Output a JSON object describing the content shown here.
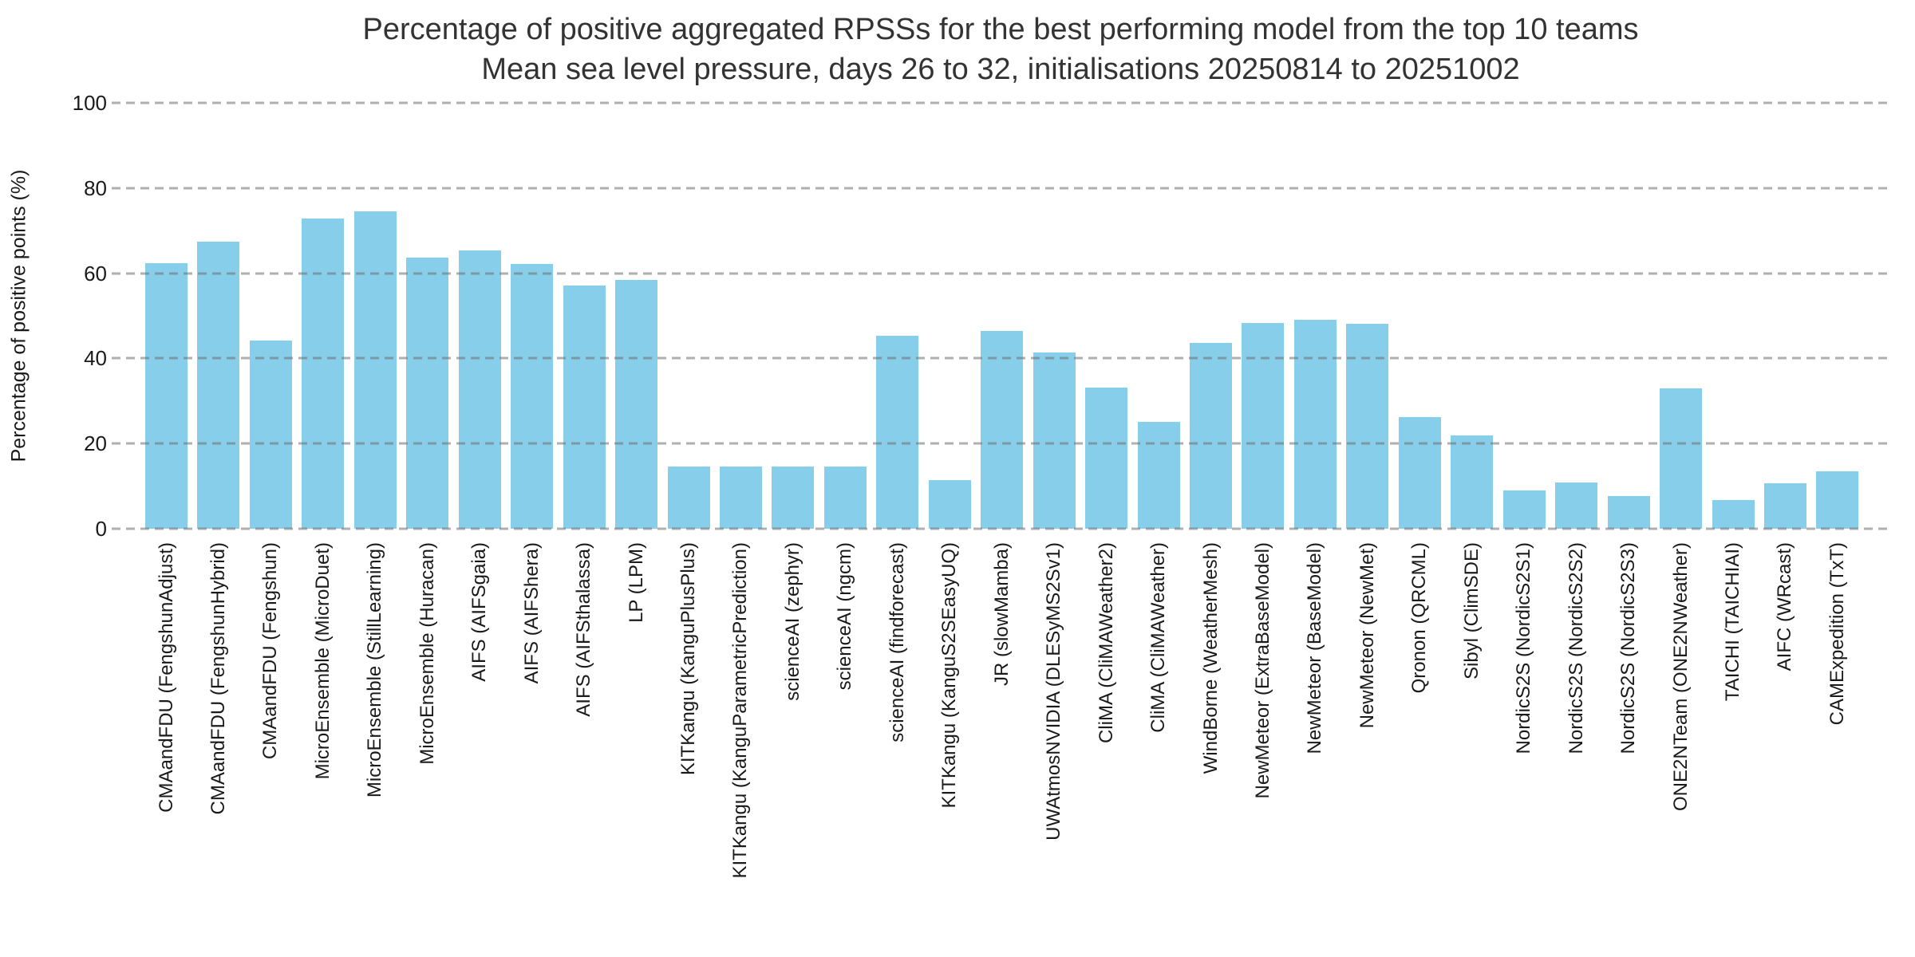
{
  "title": {
    "line1": "Percentage of positive aggregated RPSSs for the best performing model from the top 10 teams",
    "line2": "Mean sea level pressure, days 26 to 32, initialisations 20250814 to 20251002"
  },
  "y_axis": {
    "label": "Percentage of positive points (%)",
    "ticks": [
      0,
      20,
      40,
      60,
      80,
      100
    ]
  },
  "colors": {
    "bar": "#87CEEB",
    "gridline": "#a8a8a8",
    "title_text": "#333333",
    "tick_text": "#1a1a1a",
    "background": "#ffffff"
  },
  "chart_data": {
    "type": "bar",
    "title": "Percentage of positive aggregated RPSSs for the best performing model from the top 10 teams",
    "subtitle": "Mean sea level pressure, days 26 to 32, initialisations 20250814 to 20251002",
    "xlabel": "",
    "ylabel": "Percentage of positive points (%)",
    "ylim": [
      0,
      100
    ],
    "yticks": [
      0,
      20,
      40,
      60,
      80,
      100
    ],
    "grid": "horizontal-dashed",
    "legend": "none",
    "bar_color": "#87CEEB",
    "categories": [
      "CMAandFDU (FengshunAdjust)",
      "CMAandFDU (FengshunHybrid)",
      "CMAandFDU (Fengshun)",
      "MicroEnsemble (MicroDuet)",
      "MicroEnsemble (StillLearning)",
      "MicroEnsemble (Huracan)",
      "AIFS (AIFSgaia)",
      "AIFS (AIFShera)",
      "AIFS (AIFSthalassa)",
      "LP (LPM)",
      "KITKangu (KanguPlusPlus)",
      "KITKangu (KanguParametricPrediction)",
      "scienceAI (zephyr)",
      "scienceAI (ngcm)",
      "scienceAI (findforecast)",
      "KITKangu (KanguS2SEasyUQ)",
      "JR (slowMamba)",
      "UWAtmosNVIDIA (DLESyMS2Sv1)",
      "CliMA (CliMAWeather2)",
      "CliMA (CliMAWeather)",
      "WindBorne (WeatherMesh)",
      "NewMeteor (ExtraBaseModel)",
      "NewMeteor (BaseModel)",
      "NewMeteor (NewMet)",
      "Qronon (QRCML)",
      "Sibyl (ClimSDE)",
      "NordicS2S (NordicS2S1)",
      "NordicS2S (NordicS2S2)",
      "NordicS2S (NordicS2S3)",
      "ONE2NTeam (ONE2NWeather)",
      "TAICHI (TAICHIAI)",
      "AIFC (WRcast)",
      "CAMExpedition (TxT)"
    ],
    "values": [
      62.4,
      67.5,
      44.2,
      72.8,
      74.5,
      63.6,
      65.3,
      62.2,
      57.1,
      58.5,
      14.6,
      14.6,
      14.6,
      14.6,
      45.3,
      11.4,
      46.5,
      41.3,
      33.2,
      25.1,
      43.6,
      48.4,
      49.0,
      48.1,
      26.3,
      22.0,
      8.9,
      10.8,
      7.7,
      33.0,
      6.7,
      10.7,
      13.4
    ]
  }
}
